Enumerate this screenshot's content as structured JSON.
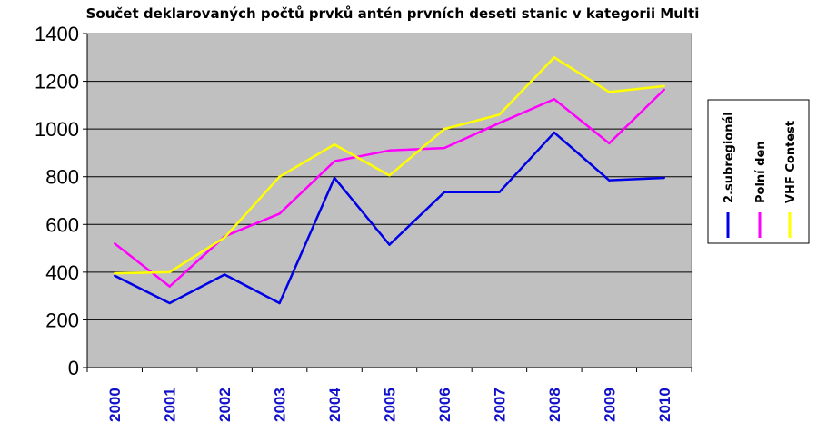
{
  "chart_data": {
    "type": "line",
    "title": "Součet deklarovaných počtů prvků antén prvních deseti stanic v kategorii Multi",
    "xlabel": "",
    "ylabel": "",
    "ylim": [
      0,
      1400
    ],
    "yticks": [
      "0",
      "200",
      "400",
      "600",
      "800",
      "1000",
      "1200",
      "1400"
    ],
    "categories": [
      "2000",
      "2001",
      "2002",
      "2003",
      "2004",
      "2005",
      "2006",
      "2007",
      "2008",
      "2009",
      "2010"
    ],
    "grid": true,
    "legend_position": "right",
    "plot_background": "#c0c0c0",
    "series": [
      {
        "name": "2.subregionál",
        "color": "#0000e6",
        "values": [
          385,
          270,
          390,
          270,
          795,
          515,
          735,
          735,
          985,
          785,
          795
        ]
      },
      {
        "name": "Polní den",
        "color": "#ff00ff",
        "values": [
          520,
          340,
          550,
          645,
          865,
          910,
          920,
          1025,
          1125,
          940,
          1165
        ]
      },
      {
        "name": "VHF Contest",
        "color": "#ffff00",
        "values": [
          395,
          400,
          545,
          800,
          935,
          805,
          1000,
          1060,
          1300,
          1155,
          1180
        ]
      }
    ]
  }
}
